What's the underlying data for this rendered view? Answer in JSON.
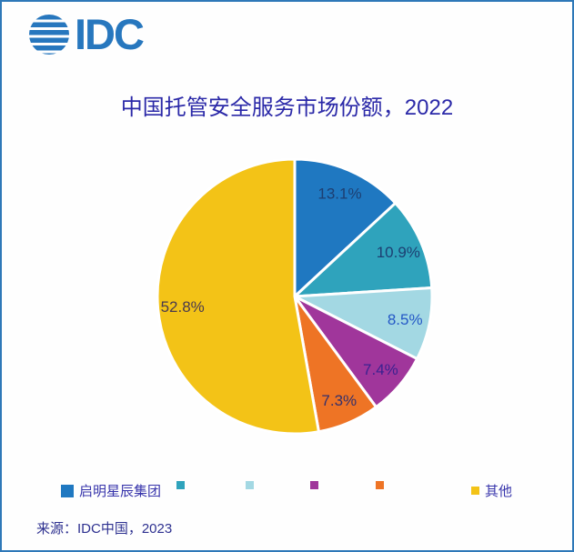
{
  "frame": {
    "border_color": "#2e78b8",
    "background": "#ffffff"
  },
  "logo": {
    "text": "IDC",
    "brand_color": "#2777be",
    "globe_icon": "striped-globe-icon"
  },
  "title": "中国托管安全服务市场份额，2022",
  "source": "来源：IDC中国，2023",
  "chart_data": {
    "type": "pie",
    "title": "中国托管安全服务市场份额，2022",
    "unit": "percent",
    "total": 100,
    "legend_position": "bottom",
    "start_angle_deg": 0,
    "direction": "clockwise",
    "slices": [
      {
        "name": "启明星辰集团",
        "value": 13.1,
        "display": "13.1%",
        "color": "#1f78c1",
        "label_color": "#1d3f72"
      },
      {
        "name": "",
        "value": 10.9,
        "display": "10.9%",
        "color": "#2fa3bc",
        "label_color": "#1d3f72"
      },
      {
        "name": "",
        "value": 8.5,
        "display": "8.5%",
        "color": "#a3d8e3",
        "label_color": "#2458c6"
      },
      {
        "name": "",
        "value": 7.4,
        "display": "7.4%",
        "color": "#a0369b",
        "label_color": "#3b2190"
      },
      {
        "name": "",
        "value": 7.3,
        "display": "7.3%",
        "color": "#ee7425",
        "label_color": "#35306b"
      },
      {
        "name": "其他",
        "value": 52.8,
        "display": "52.8%",
        "color": "#f3c317",
        "label_color": "#4a3a4e"
      }
    ]
  }
}
